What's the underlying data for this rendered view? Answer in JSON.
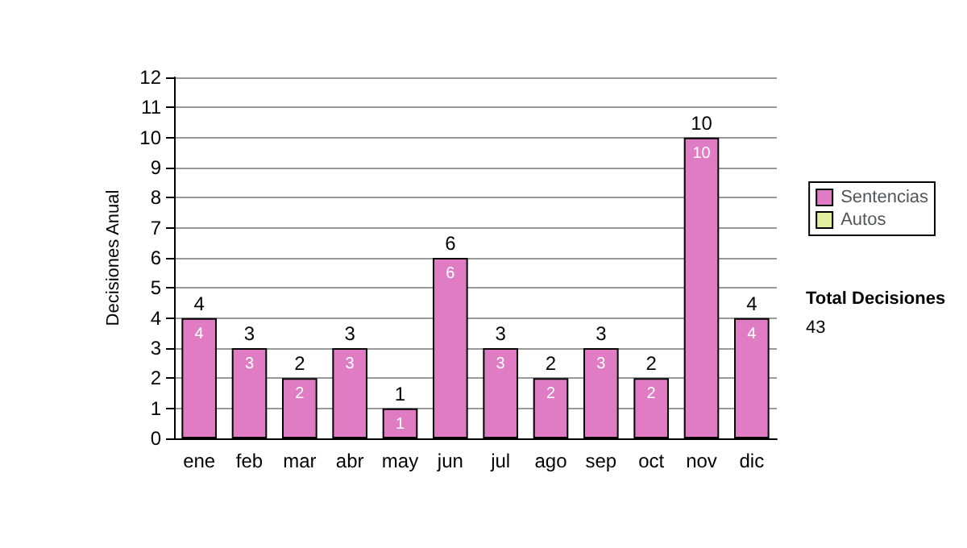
{
  "chart_data": {
    "type": "bar",
    "ylabel": "Decisiones Anual",
    "categories": [
      "ene",
      "feb",
      "mar",
      "abr",
      "may",
      "jun",
      "jul",
      "ago",
      "sep",
      "oct",
      "nov",
      "dic"
    ],
    "series": [
      {
        "name": "Sentencias",
        "color": "#e07cc4",
        "values": [
          4,
          3,
          2,
          3,
          1,
          6,
          3,
          2,
          3,
          2,
          10,
          4
        ]
      },
      {
        "name": "Autos",
        "color": "#e4eea0",
        "values": [
          null,
          null,
          null,
          null,
          null,
          null,
          null,
          null,
          null,
          null,
          null,
          null
        ]
      }
    ],
    "stacked": true,
    "data_labels": true,
    "totals": [
      "4",
      "3",
      "2",
      "3",
      "1",
      "6",
      "3",
      "2",
      "3",
      "2",
      "10",
      "4"
    ],
    "ylim": [
      0,
      12
    ],
    "yticks": [
      0,
      1,
      2,
      3,
      4,
      5,
      6,
      7,
      8,
      9,
      10,
      11,
      12
    ],
    "grid": "y",
    "legend": "right",
    "annotations": [
      "Total Decisiones",
      "43"
    ]
  }
}
